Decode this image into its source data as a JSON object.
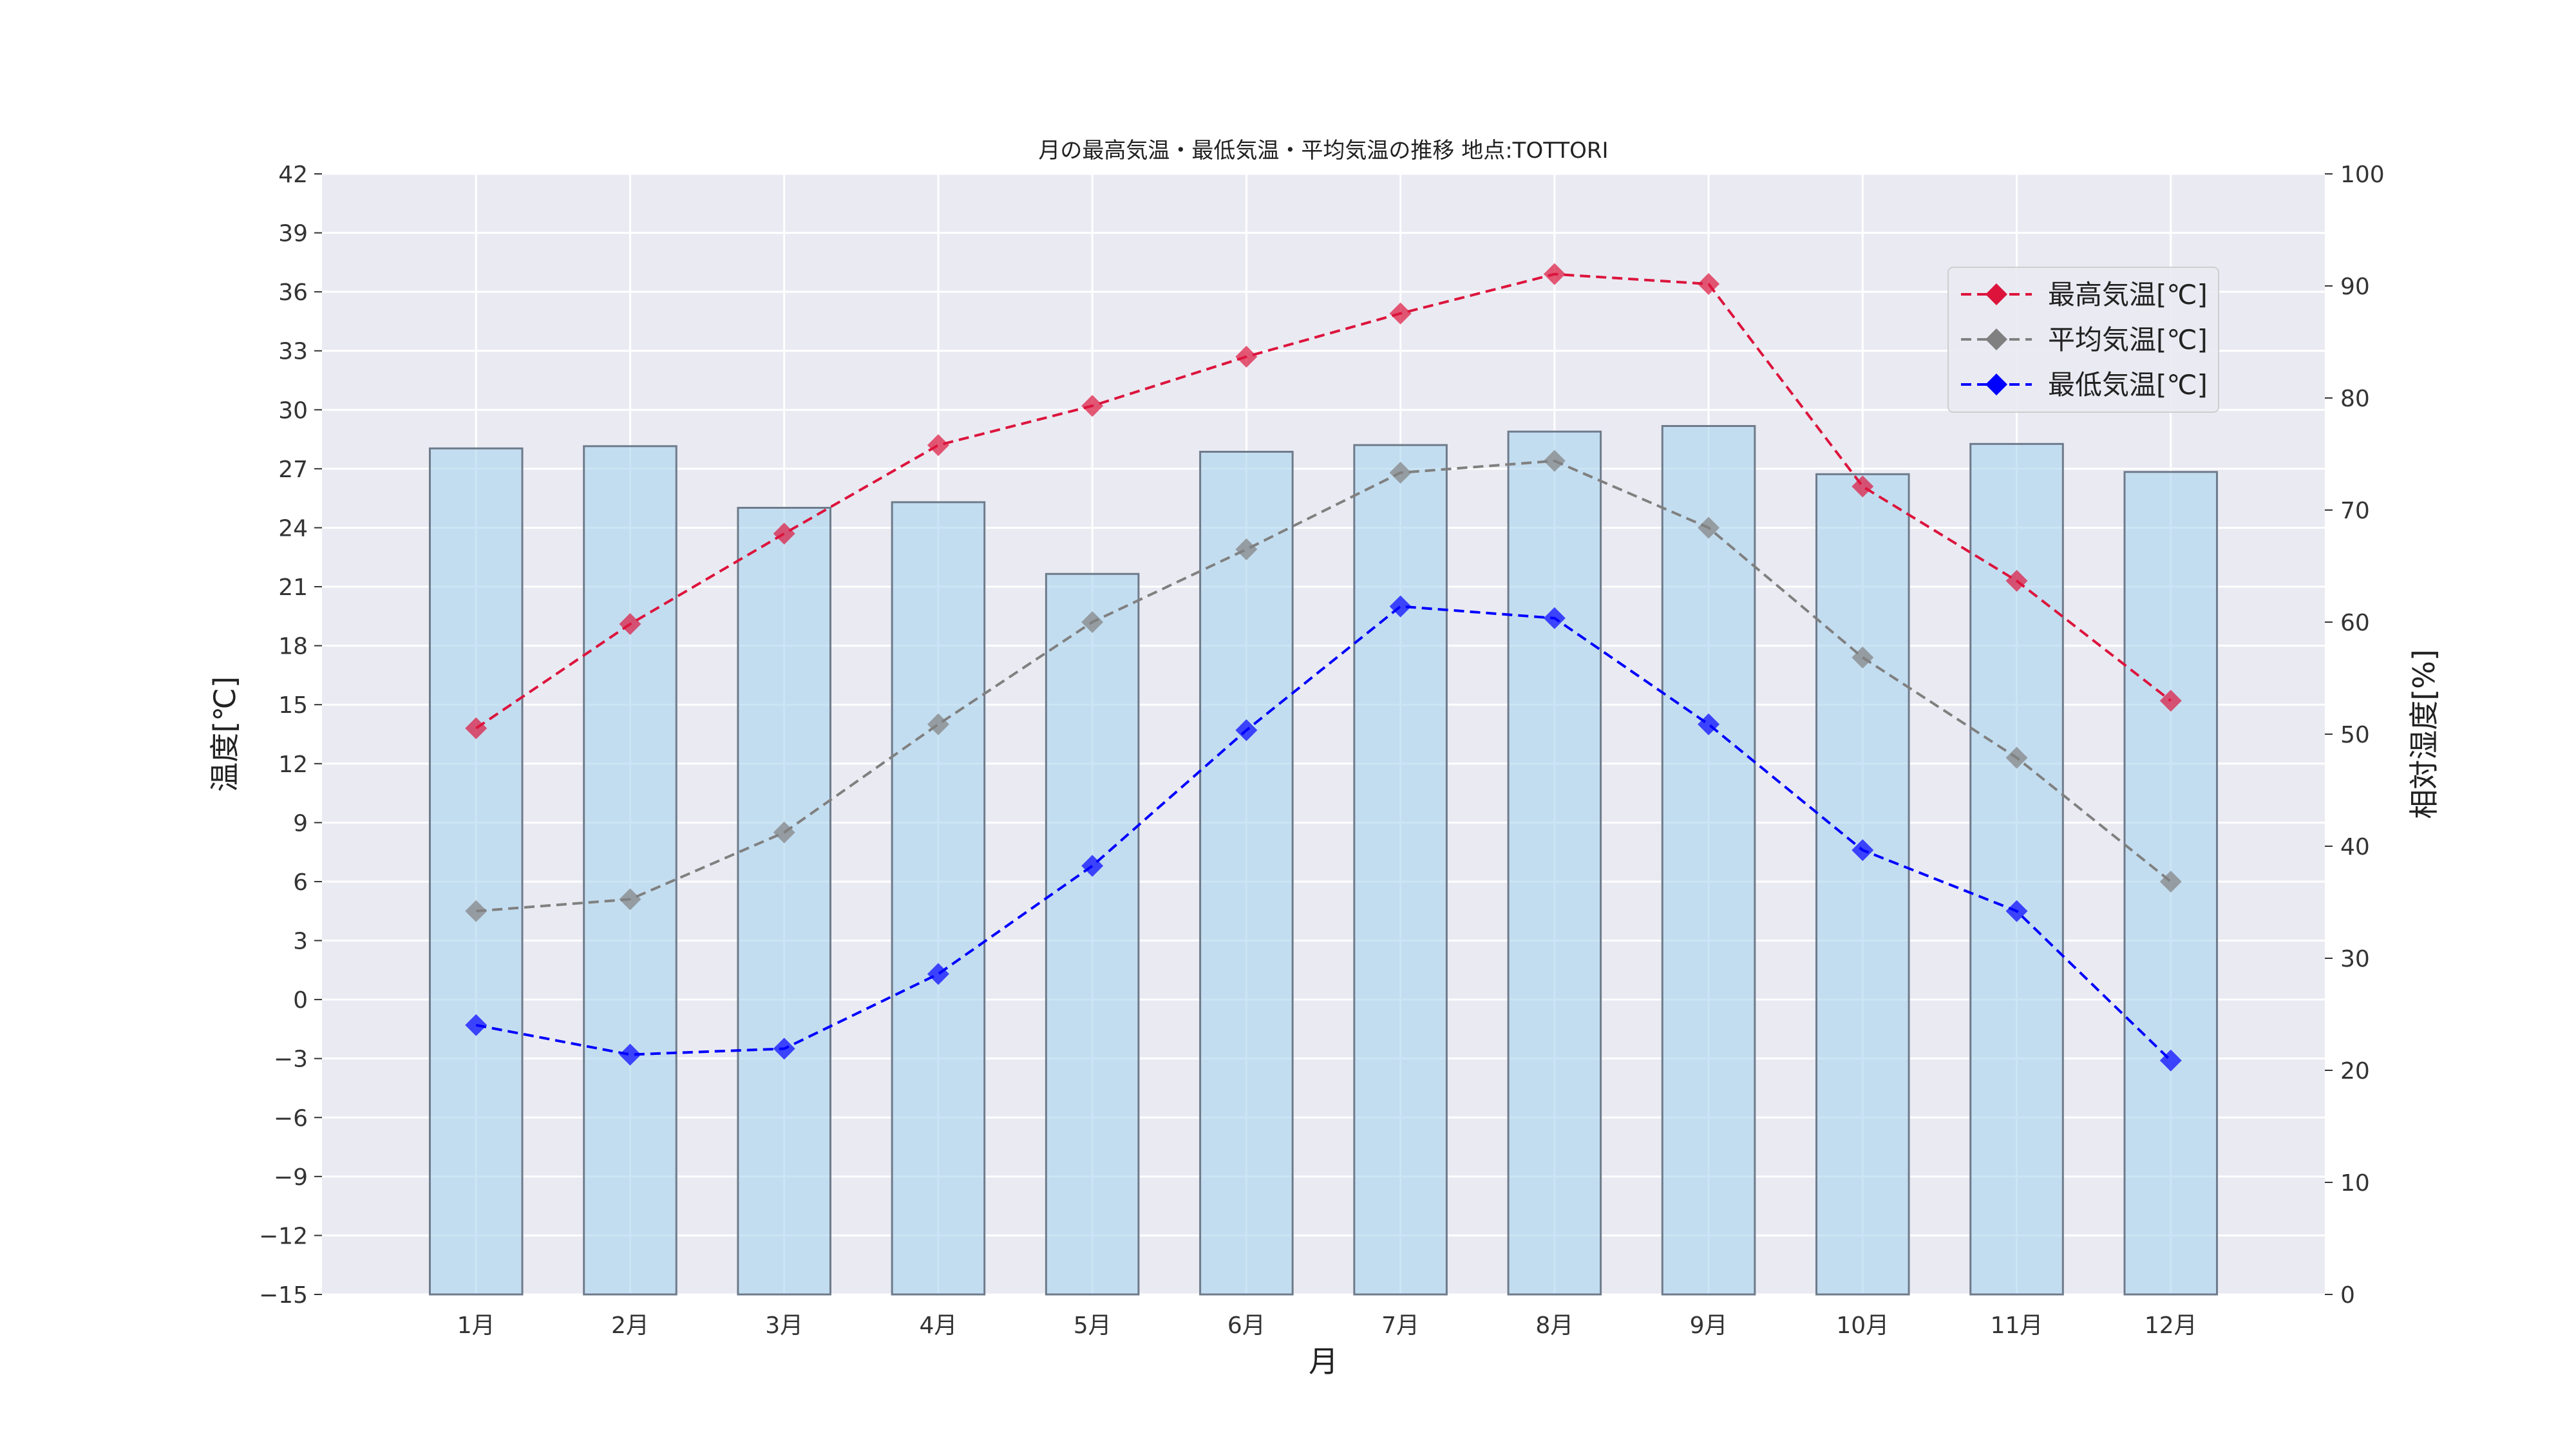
{
  "chart_data": {
    "type": "bar+line",
    "title": "月の最高気温・最低気温・平均気温の推移 地点:TOTTORI",
    "xlabel": "月",
    "ylabel_left": "温度[℃]",
    "ylabel_right": "相対湿度[%]",
    "categories": [
      "1月",
      "2月",
      "3月",
      "4月",
      "5月",
      "6月",
      "7月",
      "8月",
      "9月",
      "10月",
      "11月",
      "12月"
    ],
    "ylim_left": [
      -15,
      42
    ],
    "yticks_left": [
      "42",
      "39",
      "36",
      "33",
      "30",
      "27",
      "24",
      "21",
      "18",
      "15",
      "12",
      "9",
      "6",
      "3",
      "0",
      "−3",
      "−6",
      "−9",
      "−12",
      "−15"
    ],
    "ylim_right": [
      0,
      100
    ],
    "yticks_right": [
      "100",
      "90",
      "80",
      "70",
      "60",
      "50",
      "40",
      "30",
      "20",
      "10",
      "0"
    ],
    "grid": true,
    "legend_position": "top-right",
    "bars": {
      "axis": "right",
      "color": "#a8d4ee",
      "values": [
        75.5,
        75.7,
        70.2,
        70.7,
        64.3,
        75.2,
        75.8,
        77.0,
        77.5,
        73.2,
        75.9,
        73.4
      ]
    },
    "series": [
      {
        "name": "最高気温[℃]",
        "color": "#dc143c",
        "values": [
          13.8,
          19.1,
          23.7,
          28.2,
          30.2,
          32.7,
          34.9,
          36.9,
          36.4,
          26.1,
          21.3,
          15.2
        ]
      },
      {
        "name": "平均気温[℃]",
        "color": "#808080",
        "values": [
          4.5,
          5.1,
          8.5,
          14.0,
          19.2,
          22.9,
          26.8,
          27.4,
          24.0,
          17.4,
          12.3,
          6.0
        ]
      },
      {
        "name": "最低気温[℃]",
        "color": "#0000ff",
        "values": [
          -1.3,
          -2.8,
          -2.5,
          1.3,
          6.8,
          13.7,
          20.0,
          19.4,
          14.0,
          7.6,
          4.5,
          -3.1
        ]
      }
    ]
  }
}
